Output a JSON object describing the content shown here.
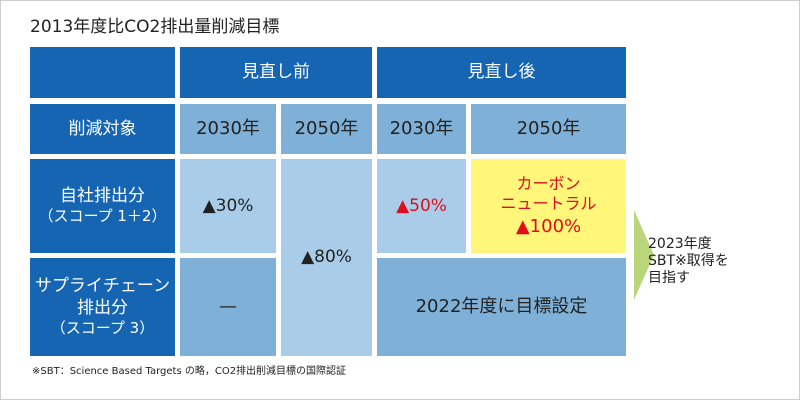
{
  "title": "2013年度比CO2排出量削減目標",
  "headers": {
    "before": "見直し前",
    "after": "見直し後",
    "target_label": "削減対象",
    "years": [
      "2030年",
      "2050年",
      "2030年",
      "2050年"
    ]
  },
  "rows": {
    "own": {
      "label1": "自社排出分",
      "label2": "（スコープ 1＋2）"
    },
    "supply": {
      "label1": "サプライチェーン",
      "label2": "排出分",
      "label3": "（スコープ 3）"
    }
  },
  "values": {
    "before_2030_own": "▲30%",
    "before_2050": "▲80%",
    "after_2030_own": "▲50%",
    "after_2050_own_line1": "カーボン",
    "after_2050_own_line2": "ニュートラル",
    "after_2050_own_line3": "▲100%",
    "before_2030_supply": "—",
    "after_supply": "2022年度に目標設定"
  },
  "goal": {
    "line1": "2023年度",
    "line2": "SBT※取得を",
    "line3": "目指す"
  },
  "footnote": "※SBT：Science Based Targets の略，CO2排出削減目標の国際認証",
  "colors": {
    "header_blue": "#1565b3",
    "light_blue": "#a9cde9",
    "mid_blue": "#7fb1d8",
    "yellow": "#fff67a",
    "red": "#e00d1a",
    "arrow_green": "#b9d77a"
  }
}
